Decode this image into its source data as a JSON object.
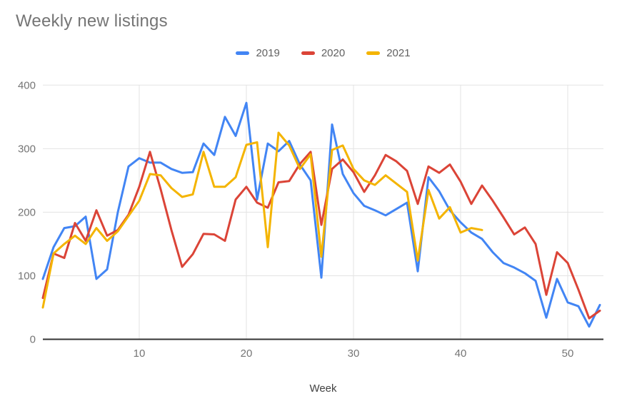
{
  "title": "Weekly new listings",
  "xaxis_title": "Week",
  "colors": {
    "series_2019": "#4285F4",
    "series_2020": "#DB4437",
    "series_2021": "#F4B400",
    "grid": "#e3e3e3",
    "axis_baseline": "#333333",
    "tick_text": "#757575",
    "title_text": "#757575",
    "legend_text": "#616161",
    "axis_title_text": "#424242"
  },
  "chart_data": {
    "type": "line",
    "title": "Weekly new listings",
    "xlabel": "Week",
    "ylabel": "",
    "x_start_week": 1,
    "x_ticks": [
      10,
      20,
      30,
      40,
      50
    ],
    "y_ticks": [
      0,
      100,
      200,
      300,
      400
    ],
    "ylim": [
      0,
      400
    ],
    "xlim": [
      1,
      53.5
    ],
    "grid": true,
    "legend_position": "top",
    "series": [
      {
        "name": "2019",
        "color": "#4285F4",
        "values": [
          95,
          145,
          175,
          178,
          193,
          95,
          110,
          200,
          272,
          285,
          278,
          278,
          268,
          262,
          263,
          308,
          290,
          350,
          320,
          372,
          220,
          308,
          296,
          312,
          275,
          250,
          97,
          338,
          260,
          230,
          210,
          203,
          195,
          205,
          215,
          107,
          255,
          233,
          203,
          184,
          168,
          158,
          137,
          120,
          113,
          104,
          92,
          34,
          95,
          58,
          52,
          20,
          54
        ]
      },
      {
        "name": "2020",
        "color": "#DB4437",
        "values": [
          65,
          135,
          128,
          183,
          155,
          203,
          163,
          172,
          196,
          240,
          295,
          236,
          172,
          114,
          134,
          166,
          165,
          155,
          220,
          240,
          215,
          207,
          247,
          249,
          276,
          295,
          180,
          268,
          283,
          263,
          232,
          258,
          290,
          280,
          265,
          213,
          272,
          262,
          275,
          248,
          213,
          242,
          218,
          192,
          165,
          176,
          150,
          70,
          137,
          120,
          78,
          33,
          45
        ]
      },
      {
        "name": "2021",
        "color": "#F4B400",
        "values": [
          50,
          135,
          150,
          163,
          150,
          175,
          155,
          170,
          194,
          218,
          260,
          258,
          238,
          224,
          228,
          295,
          240,
          240,
          255,
          306,
          310,
          145,
          325,
          305,
          268,
          291,
          130,
          298,
          305,
          268,
          250,
          243,
          258,
          245,
          232,
          124,
          235,
          190,
          208,
          168,
          175,
          172
        ]
      }
    ]
  }
}
